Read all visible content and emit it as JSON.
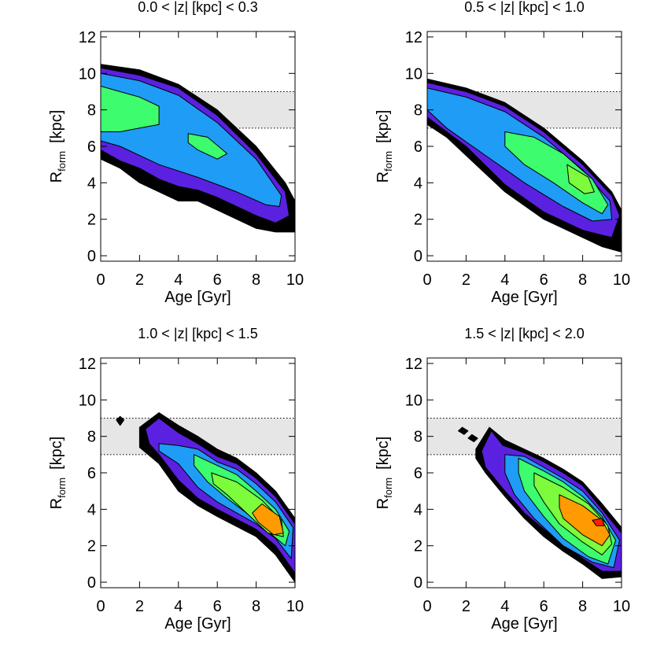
{
  "chart_data": [
    {
      "type": "contour",
      "title": "0.0 < |z| [kpc] < 0.3",
      "xlabel": "Age  [Gyr]",
      "ylabel": "R",
      "ylabel_sub": "form",
      "ylabel_unit": "[kpc]",
      "xlim": [
        0,
        10
      ],
      "ylim": [
        -0.3,
        12.3
      ],
      "xticks": [
        0,
        2,
        4,
        6,
        8,
        10
      ],
      "yticks": [
        0,
        2,
        4,
        6,
        8,
        10,
        12
      ],
      "band": [
        7,
        9
      ],
      "contours": [
        {
          "color": "#000000",
          "x": [
            0,
            2,
            4,
            6,
            8,
            9.5,
            10,
            10,
            9,
            8,
            7,
            6,
            5,
            4,
            3,
            2,
            1,
            0
          ],
          "y": [
            10.5,
            10.2,
            9.4,
            8,
            6,
            4,
            3,
            1.3,
            1.3,
            1.5,
            2,
            2.5,
            3,
            3,
            3.5,
            4,
            4.8,
            5.3
          ]
        },
        {
          "color": "#5b21e0",
          "x": [
            0,
            2,
            4,
            6,
            8,
            9.5,
            9.7,
            9,
            8,
            7,
            6,
            5,
            4,
            3,
            2,
            1,
            0
          ],
          "y": [
            10.3,
            9.9,
            9.2,
            7.7,
            5.6,
            3.5,
            2.2,
            1.8,
            2.2,
            2.7,
            3.2,
            3.6,
            3.8,
            4.2,
            4.8,
            5.2,
            5.8
          ]
        },
        {
          "color": "#1f9cf5",
          "x": [
            0,
            2,
            4,
            6,
            8,
            9.3,
            9.2,
            8.5,
            7,
            5,
            3,
            1,
            0
          ],
          "y": [
            10,
            9.6,
            8.8,
            7.3,
            5.3,
            3.3,
            2.7,
            2.8,
            3.5,
            4.3,
            5,
            6,
            6.3
          ]
        },
        {
          "color": "#3dfc6e",
          "x": [
            0,
            1,
            2,
            3,
            3,
            2,
            1,
            0
          ],
          "y": [
            9.3,
            9,
            8.7,
            8.2,
            7.2,
            7,
            6.8,
            6.8
          ]
        },
        {
          "color": "#3dfc6e",
          "x": [
            4.5,
            5.5,
            6.5,
            6,
            5,
            4.5
          ],
          "y": [
            6.7,
            6.5,
            5.6,
            5.3,
            5.8,
            6.2
          ]
        }
      ]
    },
    {
      "type": "contour",
      "title": "0.5 < |z| [kpc] < 1.0",
      "xlabel": "Age  [Gyr]",
      "ylabel": "R",
      "ylabel_sub": "form",
      "ylabel_unit": "[kpc]",
      "xlim": [
        0,
        10
      ],
      "ylim": [
        -0.3,
        12.3
      ],
      "xticks": [
        0,
        2,
        4,
        6,
        8,
        10
      ],
      "yticks": [
        0,
        2,
        4,
        6,
        8,
        10,
        12
      ],
      "band": [
        7,
        9
      ],
      "contours": [
        {
          "color": "#000000",
          "x": [
            0,
            2,
            4,
            6,
            8,
            9.5,
            10,
            10,
            9,
            8,
            6,
            4,
            3,
            2,
            1,
            0
          ],
          "y": [
            9.7,
            9.2,
            8.4,
            7,
            5.2,
            3.5,
            2.5,
            0.2,
            0.5,
            1,
            2,
            3.5,
            4.5,
            5.5,
            6.5,
            7.2
          ]
        },
        {
          "color": "#5b21e0",
          "x": [
            0,
            2,
            4,
            6,
            8,
            9.5,
            9.9,
            9.5,
            8,
            6,
            4,
            2,
            0
          ],
          "y": [
            9.5,
            9,
            8.2,
            6.8,
            5,
            3.3,
            2.2,
            1,
            1.4,
            2.4,
            3.9,
            6,
            7.6
          ]
        },
        {
          "color": "#1f9cf5",
          "x": [
            0,
            2,
            4,
            6,
            8,
            9.4,
            9.5,
            8.5,
            7,
            5,
            3,
            1,
            0
          ],
          "y": [
            9.2,
            8.7,
            7.9,
            6.5,
            4.7,
            3,
            2,
            1.9,
            2.7,
            4,
            5.5,
            7,
            8
          ]
        },
        {
          "color": "#3dfc6e",
          "x": [
            4,
            5.5,
            7,
            8.5,
            9.3,
            9,
            8,
            6.5,
            5,
            4
          ],
          "y": [
            6.8,
            6.5,
            5.6,
            4.2,
            2.8,
            2.3,
            2.9,
            4,
            5,
            6
          ]
        },
        {
          "color": "#7cfc3c",
          "x": [
            7.2,
            8.3,
            8.6,
            8.1,
            7.3
          ],
          "y": [
            5,
            4.3,
            3.5,
            3.4,
            4
          ]
        }
      ]
    },
    {
      "type": "contour",
      "title": "1.0 < |z| [kpc] < 1.5",
      "xlabel": "Age  [Gyr]",
      "ylabel": "R",
      "ylabel_sub": "form",
      "ylabel_unit": "[kpc]",
      "xlim": [
        0,
        10
      ],
      "ylim": [
        -0.3,
        12.3
      ],
      "xticks": [
        0,
        2,
        4,
        6,
        8,
        10
      ],
      "yticks": [
        0,
        2,
        4,
        6,
        8,
        10,
        12
      ],
      "band": [
        7,
        9
      ],
      "contours": [
        {
          "color": "#000000",
          "x": [
            1,
            1.2,
            1,
            0.8
          ],
          "y": [
            9.1,
            8.9,
            8.6,
            8.9
          ]
        },
        {
          "color": "#000000",
          "x": [
            2,
            3,
            4,
            5,
            6,
            7,
            8,
            9,
            10,
            10,
            9,
            8,
            6,
            5,
            4,
            3,
            2
          ],
          "y": [
            8.5,
            9.3,
            8.6,
            8,
            7.3,
            6.8,
            6,
            5,
            3.5,
            0,
            1.5,
            2.5,
            3.6,
            4.2,
            5,
            6.5,
            7.4
          ]
        },
        {
          "color": "#5b21e0",
          "x": [
            2.3,
            3,
            4,
            5,
            6,
            7,
            8,
            9,
            10,
            10,
            9,
            8,
            6,
            5,
            4,
            3,
            2.5
          ],
          "y": [
            8.4,
            9,
            8.2,
            7.6,
            6.9,
            6.5,
            5.7,
            4.7,
            3.2,
            0.5,
            2,
            2.9,
            4,
            4.6,
            5.6,
            7,
            7.6
          ]
        },
        {
          "color": "#1f9cf5",
          "x": [
            3,
            4,
            5,
            6,
            7,
            8,
            9,
            9.9,
            9.8,
            9,
            8,
            6,
            5,
            4,
            3
          ],
          "y": [
            7.6,
            7.5,
            7.3,
            6.6,
            6.2,
            5.4,
            4.4,
            3,
            1.3,
            2.4,
            3.2,
            4.4,
            5.2,
            6.5,
            7.2
          ]
        },
        {
          "color": "#3dfc6e",
          "x": [
            4.8,
            6,
            7,
            8,
            9,
            9.7,
            9.5,
            8.7,
            8,
            6.5,
            5.5,
            4.8
          ],
          "y": [
            7,
            6.4,
            5.9,
            5,
            4,
            2.8,
            2,
            2.7,
            3.4,
            4.6,
            5.5,
            6.4
          ]
        },
        {
          "color": "#7cfc3c",
          "x": [
            5.7,
            7,
            8.3,
            9.3,
            9.4,
            8.6,
            7.5,
            6.5,
            5.8
          ],
          "y": [
            6,
            5.5,
            4.5,
            3.4,
            2.5,
            2.7,
            3.8,
            4.8,
            5.4
          ]
        },
        {
          "color": "#ff9a00",
          "x": [
            8.3,
            9.2,
            9.4,
            8.9,
            8.1,
            7.8
          ],
          "y": [
            4.3,
            3.6,
            2.7,
            2.6,
            3.3,
            3.8
          ]
        }
      ]
    },
    {
      "type": "contour",
      "title": "1.5 < |z| [kpc] < 2.0",
      "xlabel": "Age  [Gyr]",
      "ylabel": "R",
      "ylabel_sub": "form",
      "ylabel_unit": "[kpc]",
      "xlim": [
        0,
        10
      ],
      "ylim": [
        -0.3,
        12.3
      ],
      "xticks": [
        0,
        2,
        4,
        6,
        8,
        10
      ],
      "yticks": [
        0,
        2,
        4,
        6,
        8,
        10,
        12
      ],
      "band": [
        7,
        9
      ],
      "contours": [
        {
          "color": "#000000",
          "x": [
            1.8,
            2.1,
            1.9,
            1.6
          ],
          "y": [
            8.5,
            8.3,
            8.1,
            8.3
          ]
        },
        {
          "color": "#000000",
          "x": [
            2.3,
            2.6,
            2.4,
            2.1
          ],
          "y": [
            8.1,
            7.9,
            7.7,
            7.9
          ]
        },
        {
          "color": "#000000",
          "x": [
            2.5,
            3.2,
            4,
            5,
            6,
            7,
            8,
            9,
            10,
            10,
            9,
            8,
            7,
            6,
            5,
            4,
            3,
            2.5
          ],
          "y": [
            7.3,
            8.5,
            7.8,
            7.3,
            6.8,
            6.2,
            5.5,
            4.3,
            3,
            0.3,
            0.2,
            1,
            1.7,
            2.5,
            3.5,
            4.7,
            6,
            6.8
          ]
        },
        {
          "color": "#5b21e0",
          "x": [
            2.8,
            3.3,
            3.9,
            5,
            6,
            7,
            8,
            9,
            10,
            10,
            9,
            8,
            6,
            5,
            4,
            3
          ],
          "y": [
            7.2,
            8.3,
            7.5,
            7.1,
            6.6,
            6,
            5.3,
            4,
            2.7,
            0.6,
            0.6,
            1.3,
            2.9,
            3.8,
            5,
            6.3
          ]
        },
        {
          "color": "#1f9cf5",
          "x": [
            4,
            5,
            6,
            7,
            8,
            9,
            9.9,
            9.6,
            8.5,
            7,
            5.5,
            4.5,
            4
          ],
          "y": [
            7,
            6.9,
            6.3,
            5.7,
            5,
            3.8,
            2.3,
            0.8,
            1.1,
            2,
            3.5,
            4.8,
            6
          ]
        },
        {
          "color": "#3dfc6e",
          "x": [
            4.7,
            6,
            7,
            8,
            9,
            9.7,
            9.3,
            8.3,
            7,
            6,
            5,
            4.7
          ],
          "y": [
            6.8,
            6.1,
            5.5,
            4.7,
            3.6,
            2.3,
            1,
            1.4,
            2.4,
            3.6,
            5,
            6
          ]
        },
        {
          "color": "#7cfc3c",
          "x": [
            5.5,
            7,
            8.3,
            9.3,
            9.5,
            9,
            8,
            6.8,
            6,
            5.5
          ],
          "y": [
            6,
            5.2,
            4.3,
            3.1,
            2.1,
            1.5,
            2.2,
            3.2,
            4.4,
            5.3
          ]
        },
        {
          "color": "#ff9a00",
          "x": [
            6.8,
            8,
            9,
            9.4,
            9,
            8,
            7,
            6.8
          ],
          "y": [
            4.8,
            4.2,
            3.4,
            2.6,
            2,
            2.6,
            3.5,
            4.1
          ]
        },
        {
          "color": "#ff2000",
          "x": [
            8.5,
            9,
            9.1,
            8.7
          ],
          "y": [
            3.4,
            3.5,
            3.1,
            3.1
          ]
        }
      ]
    }
  ]
}
